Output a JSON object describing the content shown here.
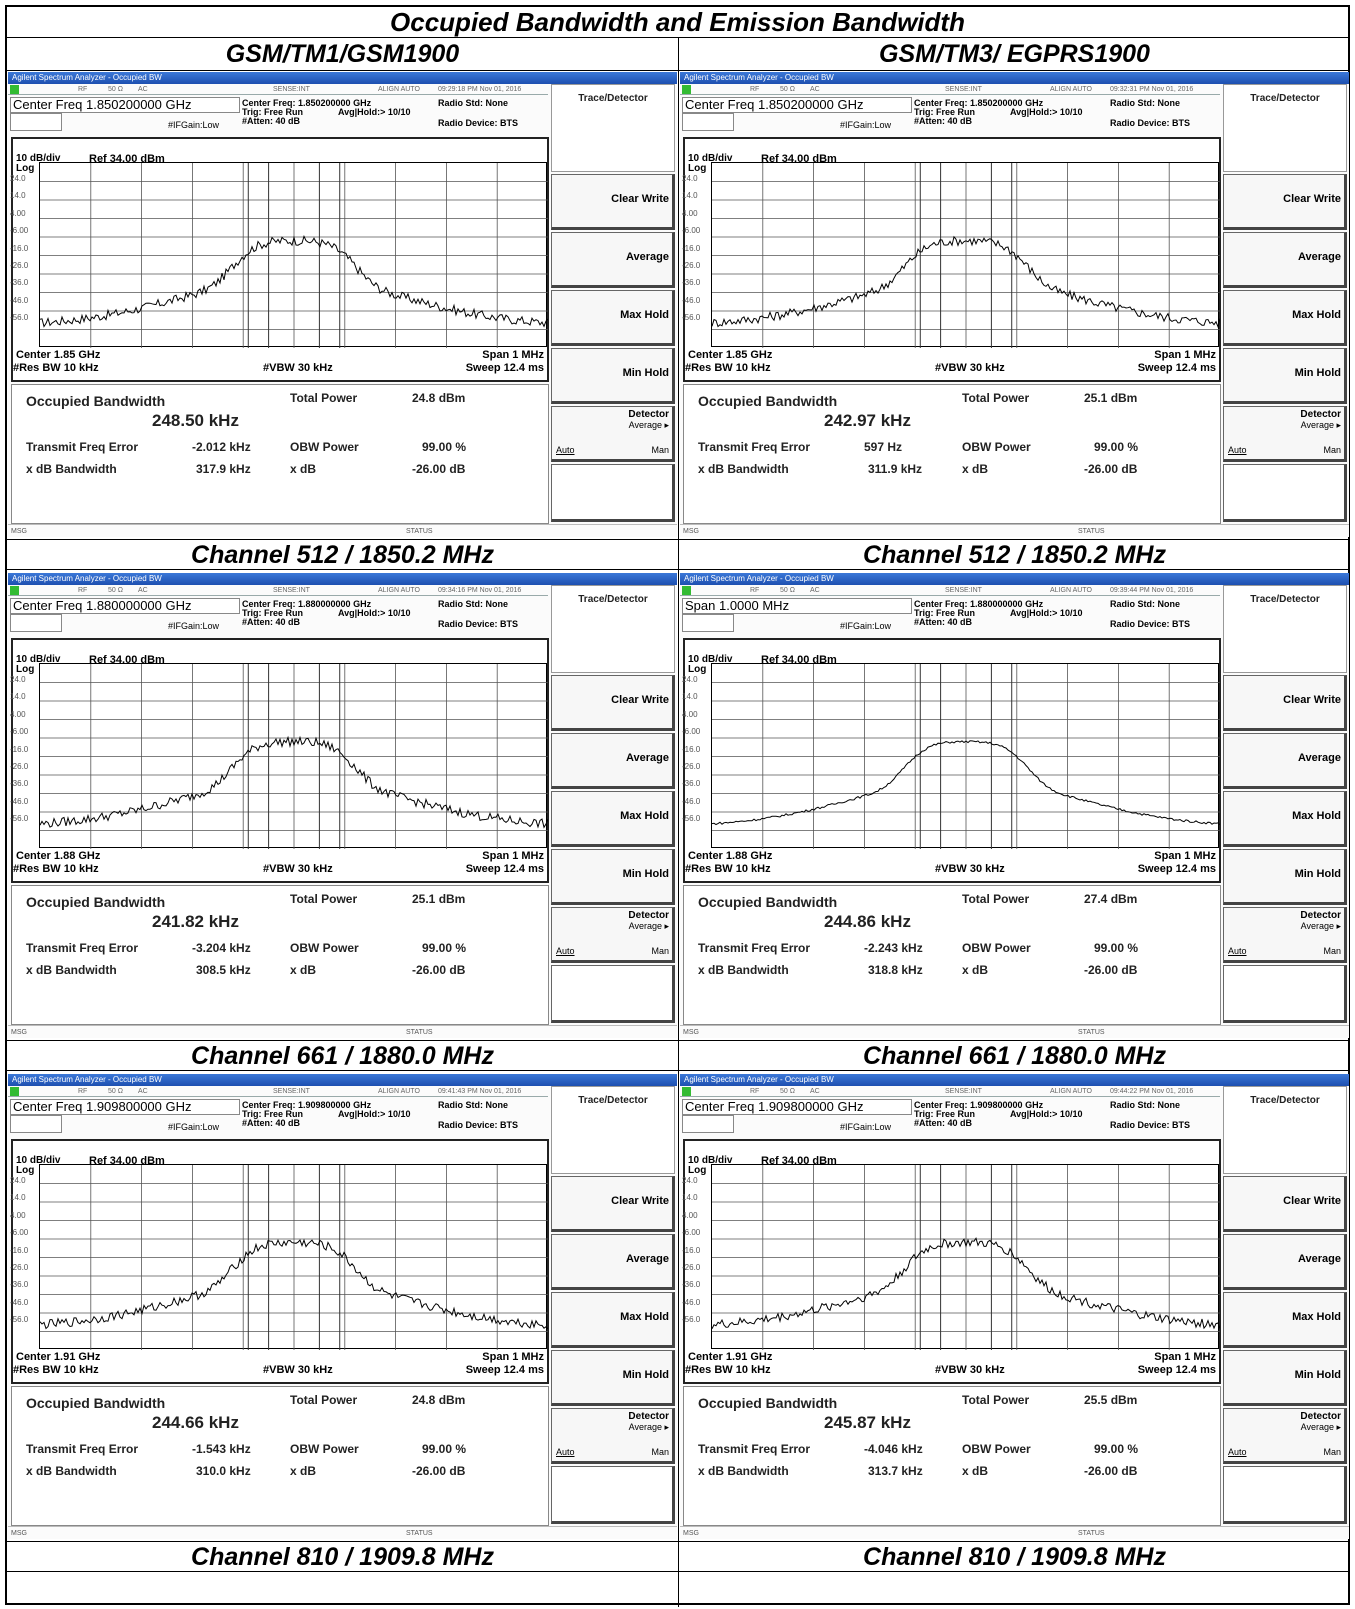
{
  "title": "Occupied Bandwidth and Emission Bandwidth",
  "columns": [
    "GSM/TM1/GSM1900",
    "GSM/TM3/ EGPRS1900"
  ],
  "common": {
    "app_title": "Agilent Spectrum Analyzer - Occupied BW",
    "status_rf": "RF",
    "status_50": "50 Ω",
    "status_ac": "AC",
    "status_sense": "SENSE:INT",
    "status_align": "ALIGN AUTO",
    "trig": "Trig: Free Run",
    "avg": "Avg|Hold:> 10/10",
    "gain": "#IFGain:Low",
    "atten": "#Atten: 40 dB",
    "radio_std": "Radio Std: None",
    "radio_dev": "Radio Device: BTS",
    "scale": "10 dB/div",
    "log": "Log",
    "ref": "Ref 34.00 dBm",
    "y_ticks": [
      "24.0",
      "14.0",
      "4.00",
      "-6.00",
      "-16.0",
      "-26.0",
      "-36.0",
      "-46.0",
      "-56.0"
    ],
    "res_bw": "#Res BW  10 kHz",
    "vbw": "#VBW  30 kHz",
    "span": "Span 1 MHz",
    "sweep": "Sweep  12.4 ms",
    "occ_bw_label": "Occupied Bandwidth",
    "total_power_label": "Total Power",
    "tx_err_label": "Transmit Freq Error",
    "xdb_bw_label": "x dB Bandwidth",
    "obw_power_label": "OBW Power",
    "obw_power_value": "99.00 %",
    "xdb_label": "x dB",
    "xdb_value": "-26.00 dB",
    "msg": "MSG",
    "status": "STATUS",
    "softkey_header": "Trace/Detector",
    "softkeys": [
      "Clear Write",
      "Average",
      "Max Hold",
      "Min Hold"
    ],
    "detector_label": "Detector",
    "detector_avg": "Average ▸",
    "detector_auto": "Auto",
    "detector_man": "Man"
  },
  "screens": [
    {
      "caption": "Channel 512 / 1850.2 MHz",
      "time": "09:29:18 PM Nov 01, 2016",
      "box": "Center Freq 1.850200000 GHz",
      "cf": "Center Freq: 1.850200000 GHz",
      "center": "Center  1.85 GHz",
      "occ_bw": "248.50 kHz",
      "total_power": "24.8 dBm",
      "tx_err": "-2.012 kHz",
      "xdb_bw": "317.9 kHz",
      "peak": 0.5,
      "shoulder": 0.62
    },
    {
      "caption": "Channel 512 / 1850.2 MHz",
      "time": "09:32:31 PM Nov 01, 2016",
      "box": "Center Freq 1.850200000 GHz",
      "cf": "Center Freq: 1.850200000 GHz",
      "center": "Center  1.85 GHz",
      "occ_bw": "242.97 kHz",
      "total_power": "25.1 dBm",
      "tx_err": "597 Hz",
      "xdb_bw": "311.9 kHz",
      "peak": 0.5,
      "shoulder": 0.62
    },
    {
      "caption": "Channel 661 / 1880.0 MHz",
      "time": "09:34:16 PM Nov 01, 2016",
      "box": "Center Freq 1.880000000 GHz",
      "cf": "Center Freq: 1.880000000 GHz",
      "center": "Center  1.88 GHz",
      "occ_bw": "241.82 kHz",
      "total_power": "25.1 dBm",
      "tx_err": "-3.204 kHz",
      "xdb_bw": "308.5 kHz",
      "peak": 0.5,
      "shoulder": 0.62
    },
    {
      "caption": "Channel 661 / 1880.0 MHz",
      "time": "09:39:44 PM Nov 01, 2016",
      "box": "Span 1.0000 MHz",
      "cf": "Center Freq: 1.880000000 GHz",
      "center": "Center  1.88 GHz",
      "occ_bw": "244.86 kHz",
      "total_power": "27.4 dBm",
      "tx_err": "-2.243 kHz",
      "xdb_bw": "318.8 kHz",
      "peak": 0.5,
      "shoulder": 0.62
    },
    {
      "caption": "Channel 810 / 1909.8 MHz",
      "time": "09:41:43 PM Nov 01, 2016",
      "box": "Center Freq 1.909800000 GHz",
      "cf": "Center Freq: 1.909800000 GHz",
      "center": "Center  1.91 GHz",
      "occ_bw": "244.66 kHz",
      "total_power": "24.8 dBm",
      "tx_err": "-1.543 kHz",
      "xdb_bw": "310.0 kHz",
      "peak": 0.5,
      "shoulder": 0.62
    },
    {
      "caption": "Channel 810 / 1909.8 MHz",
      "time": "09:44:22 PM Nov 01, 2016",
      "box": "Center Freq 1.909800000 GHz",
      "cf": "Center Freq: 1.909800000 GHz",
      "center": "Center  1.91 GHz",
      "occ_bw": "245.87 kHz",
      "total_power": "25.5 dBm",
      "tx_err": "-4.046 kHz",
      "xdb_bw": "313.7 kHz",
      "peak": 0.5,
      "shoulder": 0.62
    }
  ]
}
